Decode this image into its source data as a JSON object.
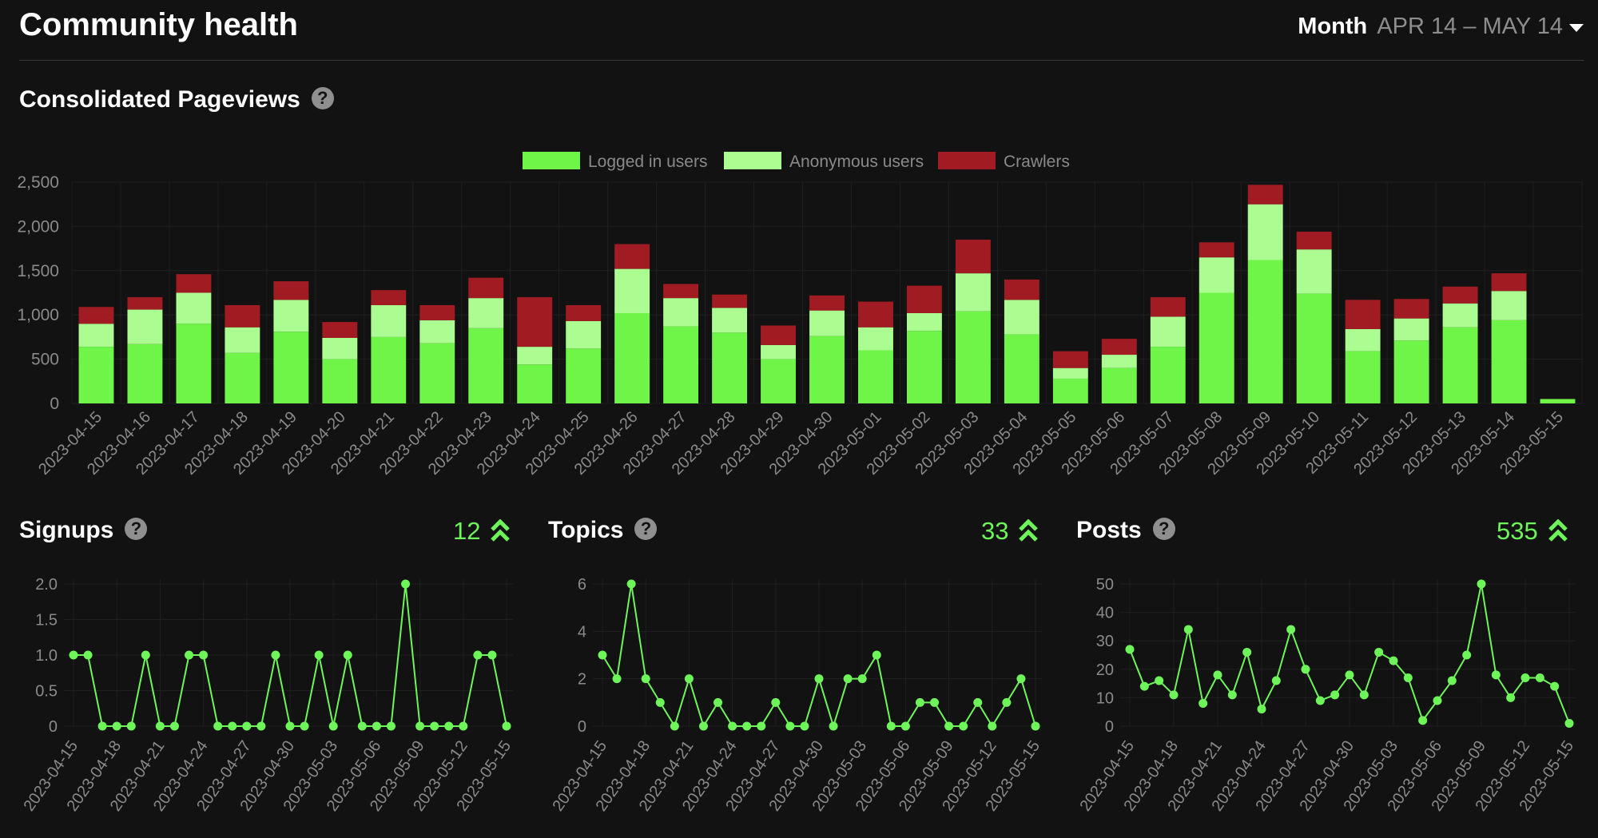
{
  "header": {
    "title": "Community health",
    "period_label": "Month",
    "period_range": "APR 14 – MAY 14"
  },
  "pageviews": {
    "title": "Consolidated Pageviews"
  },
  "signups": {
    "title": "Signups",
    "total": "12"
  },
  "topics": {
    "title": "Topics",
    "total": "33"
  },
  "posts": {
    "title": "Posts",
    "total": "535"
  },
  "colors": {
    "background": "#121212",
    "logged_in": "#6ef548",
    "anonymous": "#acfd91",
    "crawlers": "#a11c22",
    "line": "#6ef55a",
    "grid": "#1f1f1f",
    "tick_text": "#8a8a8a"
  },
  "chart_data": [
    {
      "type": "bar",
      "stacked": true,
      "title": "Consolidated Pageviews",
      "categories": [
        "2023-04-15",
        "2023-04-16",
        "2023-04-17",
        "2023-04-18",
        "2023-04-19",
        "2023-04-20",
        "2023-04-21",
        "2023-04-22",
        "2023-04-23",
        "2023-04-24",
        "2023-04-25",
        "2023-04-26",
        "2023-04-27",
        "2023-04-28",
        "2023-04-29",
        "2023-04-30",
        "2023-05-01",
        "2023-05-02",
        "2023-05-03",
        "2023-05-04",
        "2023-05-05",
        "2023-05-06",
        "2023-05-07",
        "2023-05-08",
        "2023-05-09",
        "2023-05-10",
        "2023-05-11",
        "2023-05-12",
        "2023-05-13",
        "2023-05-14",
        "2023-05-15"
      ],
      "series": [
        {
          "name": "Logged in users",
          "values": [
            640,
            670,
            900,
            570,
            810,
            500,
            750,
            680,
            850,
            440,
            620,
            1020,
            870,
            800,
            500,
            760,
            600,
            820,
            1040,
            780,
            280,
            400,
            640,
            1250,
            1620,
            1240,
            590,
            710,
            860,
            940,
            50
          ]
        },
        {
          "name": "Anonymous users",
          "values": [
            260,
            390,
            350,
            290,
            360,
            240,
            360,
            260,
            340,
            200,
            310,
            500,
            320,
            280,
            160,
            290,
            260,
            200,
            430,
            390,
            120,
            150,
            340,
            400,
            630,
            500,
            250,
            250,
            270,
            330,
            0
          ]
        },
        {
          "name": "Crawlers",
          "values": [
            190,
            140,
            210,
            250,
            210,
            180,
            170,
            170,
            230,
            560,
            180,
            280,
            160,
            150,
            220,
            170,
            290,
            310,
            380,
            230,
            190,
            180,
            220,
            170,
            220,
            200,
            330,
            220,
            190,
            200,
            0
          ]
        }
      ],
      "yticks": [
        "0",
        "500",
        "1,000",
        "1,500",
        "2,000",
        "2,500"
      ],
      "ylim": [
        0,
        2500
      ],
      "legend": "top-center"
    },
    {
      "type": "line",
      "title": "Signups",
      "x": [
        "2023-04-15",
        "2023-04-16",
        "2023-04-17",
        "2023-04-18",
        "2023-04-19",
        "2023-04-20",
        "2023-04-21",
        "2023-04-22",
        "2023-04-23",
        "2023-04-24",
        "2023-04-25",
        "2023-04-26",
        "2023-04-27",
        "2023-04-28",
        "2023-04-29",
        "2023-04-30",
        "2023-05-01",
        "2023-05-02",
        "2023-05-03",
        "2023-05-04",
        "2023-05-05",
        "2023-05-06",
        "2023-05-07",
        "2023-05-08",
        "2023-05-09",
        "2023-05-10",
        "2023-05-11",
        "2023-05-12",
        "2023-05-13",
        "2023-05-14",
        "2023-05-15"
      ],
      "values": [
        1,
        1,
        0,
        0,
        0,
        1,
        0,
        0,
        1,
        1,
        0,
        0,
        0,
        0,
        1,
        0,
        0,
        1,
        0,
        1,
        0,
        0,
        0,
        2,
        0,
        0,
        0,
        0,
        1,
        1,
        0
      ],
      "xticks": [
        "2023-04-15",
        "2023-04-18",
        "2023-04-21",
        "2023-04-24",
        "2023-04-27",
        "2023-04-30",
        "2023-05-03",
        "2023-05-06",
        "2023-05-09",
        "2023-05-12",
        "2023-05-15"
      ],
      "yticks": [
        "0",
        "0.5",
        "1.0",
        "1.5",
        "2.0"
      ],
      "ylim": [
        0,
        2
      ]
    },
    {
      "type": "line",
      "title": "Topics",
      "x": [
        "2023-04-15",
        "2023-04-16",
        "2023-04-17",
        "2023-04-18",
        "2023-04-19",
        "2023-04-20",
        "2023-04-21",
        "2023-04-22",
        "2023-04-23",
        "2023-04-24",
        "2023-04-25",
        "2023-04-26",
        "2023-04-27",
        "2023-04-28",
        "2023-04-29",
        "2023-04-30",
        "2023-05-01",
        "2023-05-02",
        "2023-05-03",
        "2023-05-04",
        "2023-05-05",
        "2023-05-06",
        "2023-05-07",
        "2023-05-08",
        "2023-05-09",
        "2023-05-10",
        "2023-05-11",
        "2023-05-12",
        "2023-05-13",
        "2023-05-14",
        "2023-05-15"
      ],
      "values": [
        3,
        2,
        6,
        2,
        1,
        0,
        2,
        0,
        1,
        0,
        0,
        0,
        1,
        0,
        0,
        2,
        0,
        2,
        2,
        3,
        0,
        0,
        1,
        1,
        0,
        0,
        1,
        0,
        1,
        2,
        0
      ],
      "xticks": [
        "2023-04-15",
        "2023-04-18",
        "2023-04-21",
        "2023-04-24",
        "2023-04-27",
        "2023-04-30",
        "2023-05-03",
        "2023-05-06",
        "2023-05-09",
        "2023-05-12",
        "2023-05-15"
      ],
      "yticks": [
        "0",
        "2",
        "4",
        "6"
      ],
      "ylim": [
        0,
        6
      ]
    },
    {
      "type": "line",
      "title": "Posts",
      "x": [
        "2023-04-15",
        "2023-04-16",
        "2023-04-17",
        "2023-04-18",
        "2023-04-19",
        "2023-04-20",
        "2023-04-21",
        "2023-04-22",
        "2023-04-23",
        "2023-04-24",
        "2023-04-25",
        "2023-04-26",
        "2023-04-27",
        "2023-04-28",
        "2023-04-29",
        "2023-04-30",
        "2023-05-01",
        "2023-05-02",
        "2023-05-03",
        "2023-05-04",
        "2023-05-05",
        "2023-05-06",
        "2023-05-07",
        "2023-05-08",
        "2023-05-09",
        "2023-05-10",
        "2023-05-11",
        "2023-05-12",
        "2023-05-13",
        "2023-05-14",
        "2023-05-15"
      ],
      "values": [
        27,
        14,
        16,
        11,
        34,
        8,
        18,
        11,
        26,
        6,
        16,
        34,
        20,
        9,
        11,
        18,
        11,
        26,
        23,
        17,
        2,
        9,
        16,
        25,
        50,
        18,
        10,
        17,
        17,
        14,
        1
      ],
      "xticks": [
        "2023-04-15",
        "2023-04-18",
        "2023-04-21",
        "2023-04-24",
        "2023-04-27",
        "2023-04-30",
        "2023-05-03",
        "2023-05-06",
        "2023-05-09",
        "2023-05-12",
        "2023-05-15"
      ],
      "yticks": [
        "0",
        "10",
        "20",
        "30",
        "40",
        "50"
      ],
      "ylim": [
        0,
        50
      ]
    }
  ]
}
